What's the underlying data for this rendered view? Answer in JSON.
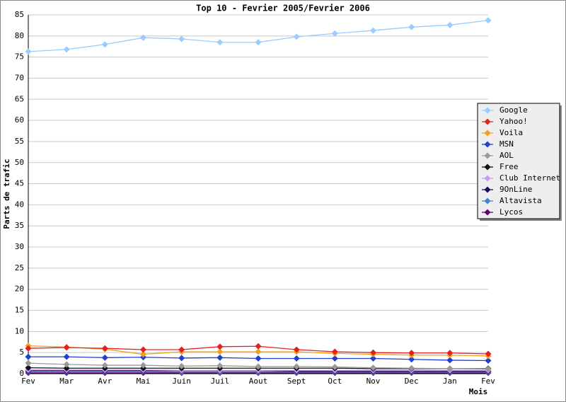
{
  "chart_data": {
    "type": "line",
    "title": "Top 10 - Fevrier 2005/Fevrier 2006",
    "x_label": "Mois",
    "y_label": "Parts de trafic",
    "categories": [
      "Fev",
      "Mar",
      "Avr",
      "Mai",
      "Juin",
      "Juil",
      "Aout",
      "Sept",
      "Oct",
      "Nov",
      "Dec",
      "Jan",
      "Fev"
    ],
    "ylim": [
      0,
      85
    ],
    "yticks": [
      0,
      5,
      10,
      15,
      20,
      25,
      30,
      35,
      40,
      45,
      50,
      55,
      60,
      65,
      70,
      75,
      80,
      85
    ],
    "grid": true,
    "legend": "right",
    "series": [
      {
        "name": "Google",
        "color": "#99ccff",
        "values": [
          76.3,
          76.8,
          78.0,
          79.6,
          79.3,
          78.5,
          78.5,
          79.8,
          80.6,
          81.3,
          82.1,
          82.6,
          83.7
        ]
      },
      {
        "name": "Yahoo!",
        "color": "#e32020",
        "values": [
          6.0,
          6.2,
          6.0,
          5.7,
          5.7,
          6.4,
          6.5,
          5.7,
          5.2,
          5.0,
          4.9,
          4.9,
          4.7
        ]
      },
      {
        "name": "Voila",
        "color": "#f0a020",
        "values": [
          6.6,
          6.3,
          5.8,
          4.6,
          5.2,
          5.2,
          5.2,
          5.2,
          4.8,
          4.6,
          4.4,
          4.4,
          4.2
        ]
      },
      {
        "name": "MSN",
        "color": "#2040d0",
        "values": [
          4.0,
          4.0,
          3.8,
          3.9,
          3.7,
          3.8,
          3.6,
          3.6,
          3.6,
          3.6,
          3.4,
          3.2,
          3.1
        ]
      },
      {
        "name": "AOL",
        "color": "#999999",
        "values": [
          2.5,
          2.2,
          2.0,
          2.0,
          1.8,
          1.9,
          1.7,
          1.7,
          1.6,
          1.4,
          1.3,
          1.2,
          1.1
        ]
      },
      {
        "name": "Free",
        "color": "#111111",
        "values": [
          1.4,
          1.3,
          1.3,
          1.3,
          1.3,
          1.3,
          1.3,
          1.3,
          1.3,
          1.2,
          1.2,
          1.2,
          1.2
        ]
      },
      {
        "name": "Club Internet",
        "color": "#cc99ee",
        "values": [
          0.9,
          0.9,
          0.9,
          0.9,
          0.8,
          0.8,
          0.8,
          0.8,
          0.8,
          0.8,
          0.8,
          0.8,
          0.8
        ]
      },
      {
        "name": "9OnLine",
        "color": "#101060",
        "values": [
          0.7,
          0.7,
          0.7,
          0.7,
          0.7,
          0.7,
          0.7,
          0.6,
          0.6,
          0.6,
          0.6,
          0.6,
          0.6
        ]
      },
      {
        "name": "Altavista",
        "color": "#4a80d0",
        "values": [
          0.5,
          0.5,
          0.5,
          0.5,
          0.4,
          0.4,
          0.4,
          0.4,
          0.4,
          0.4,
          0.4,
          0.4,
          0.4
        ]
      },
      {
        "name": "Lycos",
        "color": "#660066",
        "values": [
          0.2,
          0.2,
          0.2,
          0.2,
          0.2,
          0.2,
          0.2,
          0.2,
          0.2,
          0.2,
          0.2,
          0.2,
          0.2
        ]
      }
    ]
  }
}
